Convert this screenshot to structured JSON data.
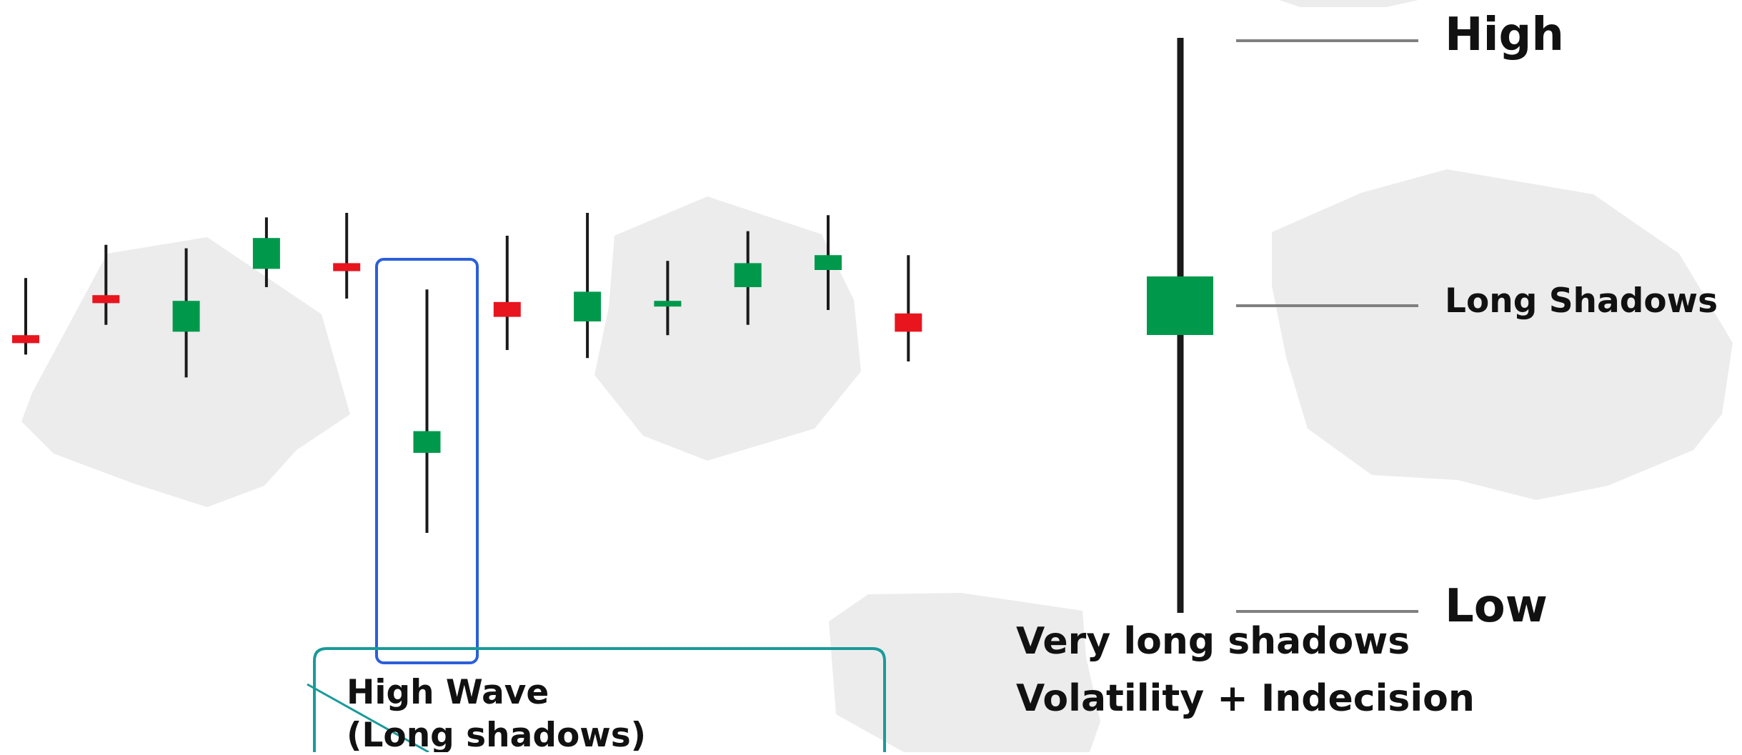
{
  "colors": {
    "bullish": "#00994c",
    "bearish": "#e8151f",
    "wick": "#1a1a1a",
    "blob": "#ececec",
    "highlight_box": "#2b5fd9",
    "callout_box": "#1a9a9a",
    "leader": "#808080"
  },
  "candles": [
    {
      "dir": "bearish",
      "high": 0.23,
      "low": -0.44,
      "top": -0.27,
      "bottom": -0.34
    },
    {
      "dir": "bearish",
      "high": 0.52,
      "low": -0.18,
      "top": 0.08,
      "bottom": 0.01
    },
    {
      "dir": "bullish",
      "high": 0.49,
      "low": -0.64,
      "top": 0.03,
      "bottom": -0.24
    },
    {
      "dir": "bullish",
      "high": 0.76,
      "low": 0.15,
      "top": 0.58,
      "bottom": 0.31
    },
    {
      "dir": "bearish",
      "high": 0.8,
      "low": 0.05,
      "top": 0.36,
      "bottom": 0.29
    },
    {
      "dir": "bullish",
      "high": 0.13,
      "low": -2.0,
      "top": -1.11,
      "bottom": -1.3
    },
    {
      "dir": "bearish",
      "high": 0.6,
      "low": -0.4,
      "top": 0.02,
      "bottom": -0.11
    },
    {
      "dir": "bullish",
      "high": 0.8,
      "low": -0.47,
      "top": 0.11,
      "bottom": -0.15
    },
    {
      "dir": "bullish",
      "high": 0.38,
      "low": -0.27,
      "top": 0.03,
      "bottom": -0.02
    },
    {
      "dir": "bullish",
      "high": 0.64,
      "low": -0.18,
      "top": 0.36,
      "bottom": 0.15
    },
    {
      "dir": "bullish",
      "high": 0.78,
      "low": -0.05,
      "top": 0.43,
      "bottom": 0.3
    },
    {
      "dir": "bearish",
      "high": 0.43,
      "low": -0.5,
      "top": -0.08,
      "bottom": -0.24
    }
  ],
  "highlighted_candle_index": 5,
  "callout": {
    "line1": "High Wave",
    "line2": "(Long shadows)"
  },
  "anatomy": {
    "high_label": "High",
    "body_label": "Long Shadows",
    "low_label": "Low"
  },
  "notes": {
    "line1": "Very long shadows",
    "line2": "Volatility + Indecision"
  }
}
